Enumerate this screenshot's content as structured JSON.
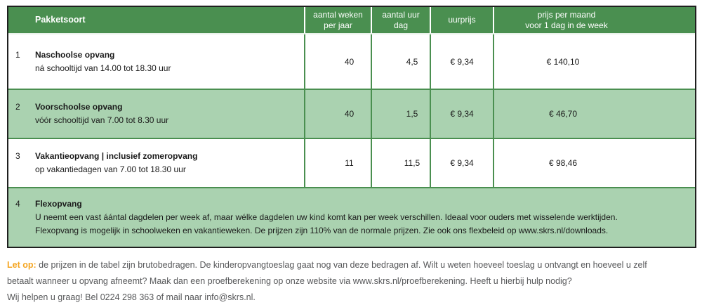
{
  "table": {
    "columns": [
      {
        "label": "Pakketsoort"
      },
      {
        "line1": "aantal weken",
        "line2": "per jaar"
      },
      {
        "line1": "aantal uur",
        "line2": "dag"
      },
      {
        "label": "uurprijs"
      },
      {
        "line1": "prijs per maand",
        "line2": "voor 1 dag in de week"
      }
    ],
    "rows": [
      {
        "num": "1",
        "title": "Naschoolse opvang",
        "subtitle": "ná schooltijd van 14.00 tot 18.30 uur",
        "weken": "40",
        "uur": "4,5",
        "uurprijs": "€ 9,34",
        "prijs": "€ 140,10"
      },
      {
        "num": "2",
        "title": "Voorschoolse opvang",
        "subtitle": "vóór schooltijd van 7.00 tot 8.30 uur",
        "weken": "40",
        "uur": "1,5",
        "uurprijs": "€ 9,34",
        "prijs": "€ 46,70"
      },
      {
        "num": "3",
        "title": "Vakantieopvang | inclusief zomeropvang",
        "subtitle": "op vakantiedagen van 7.00 tot 18.30 uur",
        "weken": "11",
        "uur": "11,5",
        "uurprijs": "€ 9,34",
        "prijs": "€ 98,46"
      }
    ],
    "flex_row": {
      "num": "4",
      "title": "Flexopvang",
      "line1": "U neemt een vast áántal dagdelen per week af, maar wélke dagdelen uw kind komt kan per week verschillen. Ideaal voor ouders met wisselende werktijden.",
      "line2": "Flexopvang is mogelijk in schoolweken en vakantieweken. De prijzen zijn 110% van de normale prijzen. Zie ook ons flexbeleid op www.skrs.nl/downloads."
    }
  },
  "note": {
    "label": "Let op:",
    "line1": "de prijzen in de tabel zijn brutobedragen. De kinderopvangtoeslag gaat nog van deze bedragen af. Wilt u weten hoeveel toeslag u ontvangt en hoeveel u zelf",
    "line2": "betaalt wanneer u opvang afneemt? Maak dan een proefberekening op onze website via www.skrs.nl/proefberekening. Heeft u hierbij hulp nodig?",
    "line3": "Wij helpen u graag! Bel 0224 298 363 of mail naar info@skrs.nl."
  },
  "colors": {
    "header_green": "#4a8f50",
    "row_green": "#aad2b0",
    "outer_border": "#1f1f1f",
    "note_accent": "#f5a623",
    "note_text": "#57585a"
  }
}
